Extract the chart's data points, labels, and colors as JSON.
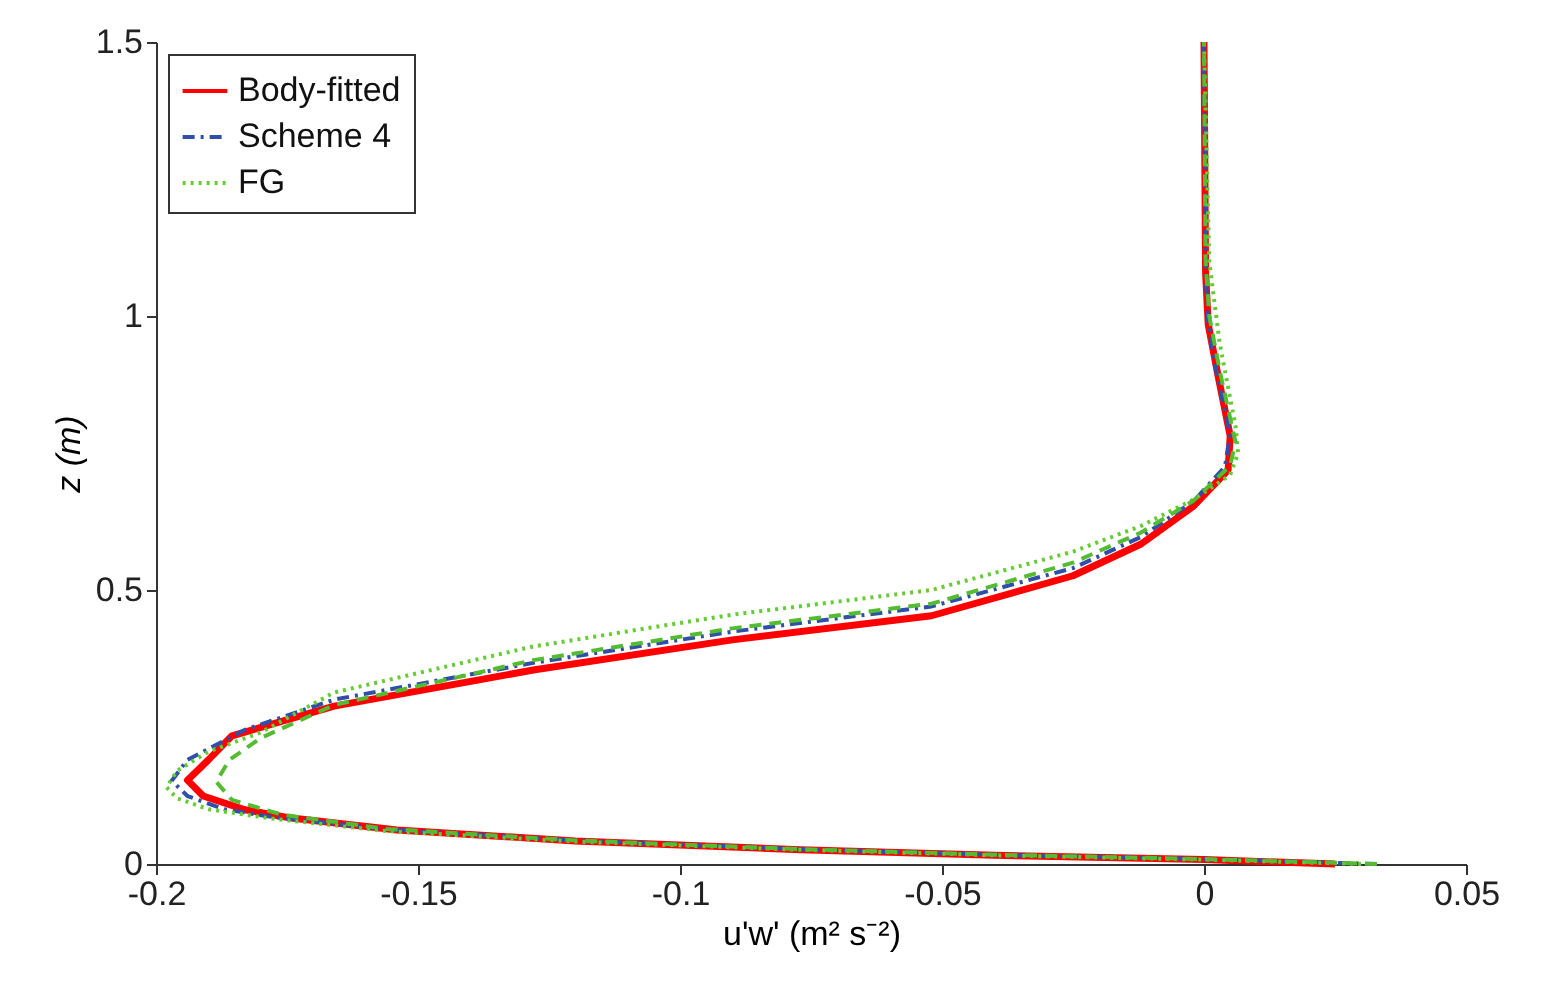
{
  "chart_data": {
    "type": "line",
    "xlabel": "u'w' (m² s⁻²)",
    "ylabel": "z (m)",
    "xlim": [
      -0.2,
      0.05
    ],
    "xticks": [
      -0.2,
      -0.15,
      -0.1,
      -0.05,
      0,
      0.05
    ],
    "ylim": [
      0,
      1.5
    ],
    "yticks": [
      0,
      0.5,
      1,
      1.5
    ],
    "grid": false,
    "legend": "top left",
    "series": [
      {
        "name": "Body-fitted",
        "color": "#ff0000",
        "line_style": "solid",
        "x": [
          0.025,
          0.0,
          -0.04,
          -0.077,
          -0.12,
          -0.154,
          -0.175,
          -0.183,
          -0.191,
          -0.194,
          -0.19,
          -0.1855,
          -0.166,
          -0.128,
          -0.09,
          -0.052,
          -0.025,
          -0.012,
          -0.002,
          0.0046,
          0.005,
          0.0027,
          0.0008,
          0.0003,
          0
        ],
        "values": [
          0,
          0.008,
          0.016,
          0.026,
          0.042,
          0.062,
          0.085,
          0.099,
          0.124,
          0.153,
          0.19,
          0.234,
          0.288,
          0.354,
          0.409,
          0.453,
          0.526,
          0.584,
          0.653,
          0.719,
          0.781,
          0.89,
          0.985,
          1.08,
          1.5
        ]
      },
      {
        "name": "Scheme 4",
        "color": "#2f4fa8",
        "line_style": "dashdot",
        "x": [
          0.033,
          0.0,
          -0.04,
          -0.077,
          -0.12,
          -0.156,
          -0.178,
          -0.187,
          -0.194,
          -0.197,
          -0.194,
          -0.183,
          -0.166,
          -0.128,
          -0.09,
          -0.052,
          -0.025,
          -0.012,
          -0.002,
          0.004,
          0.005,
          0.0025,
          0.0008,
          0.0003,
          0
        ],
        "values": [
          0,
          0.009,
          0.017,
          0.027,
          0.043,
          0.063,
          0.086,
          0.1,
          0.124,
          0.152,
          0.19,
          0.245,
          0.3,
          0.367,
          0.424,
          0.47,
          0.54,
          0.597,
          0.662,
          0.725,
          0.785,
          0.89,
          0.985,
          1.08,
          1.5
        ]
      },
      {
        "name": "FG",
        "color": "#66cc33",
        "line_style": "dotted",
        "x": [
          0.03,
          0.0,
          -0.04,
          -0.077,
          -0.12,
          -0.156,
          -0.178,
          -0.19,
          -0.196,
          -0.198,
          -0.196,
          -0.19,
          -0.18,
          -0.166,
          -0.128,
          -0.09,
          -0.052,
          -0.025,
          -0.012,
          -0.002,
          0.005,
          0.0065,
          0.006,
          0.003,
          0.001,
          0
        ],
        "values": [
          0,
          0.008,
          0.016,
          0.026,
          0.041,
          0.06,
          0.083,
          0.1,
          0.12,
          0.14,
          0.17,
          0.205,
          0.24,
          0.313,
          0.397,
          0.455,
          0.5,
          0.57,
          0.617,
          0.665,
          0.71,
          0.75,
          0.8,
          0.95,
          1.1,
          1.5
        ]
      },
      {
        "color": "#55bb33",
        "line_style": "dashed",
        "x": [
          0.033,
          0.0,
          -0.04,
          -0.077,
          -0.12,
          -0.156,
          -0.176,
          -0.1855,
          -0.1885,
          -0.186,
          -0.18,
          -0.166,
          -0.128,
          -0.09,
          -0.052,
          -0.025,
          -0.012,
          -0.002,
          0.005,
          0.006,
          0.003,
          0.001,
          0.0003,
          0
        ],
        "values": [
          0,
          0.009,
          0.017,
          0.027,
          0.043,
          0.064,
          0.09,
          0.117,
          0.15,
          0.19,
          0.23,
          0.29,
          0.372,
          0.43,
          0.475,
          0.55,
          0.605,
          0.663,
          0.727,
          0.77,
          0.9,
          1.0,
          1.1,
          1.5
        ]
      }
    ]
  }
}
